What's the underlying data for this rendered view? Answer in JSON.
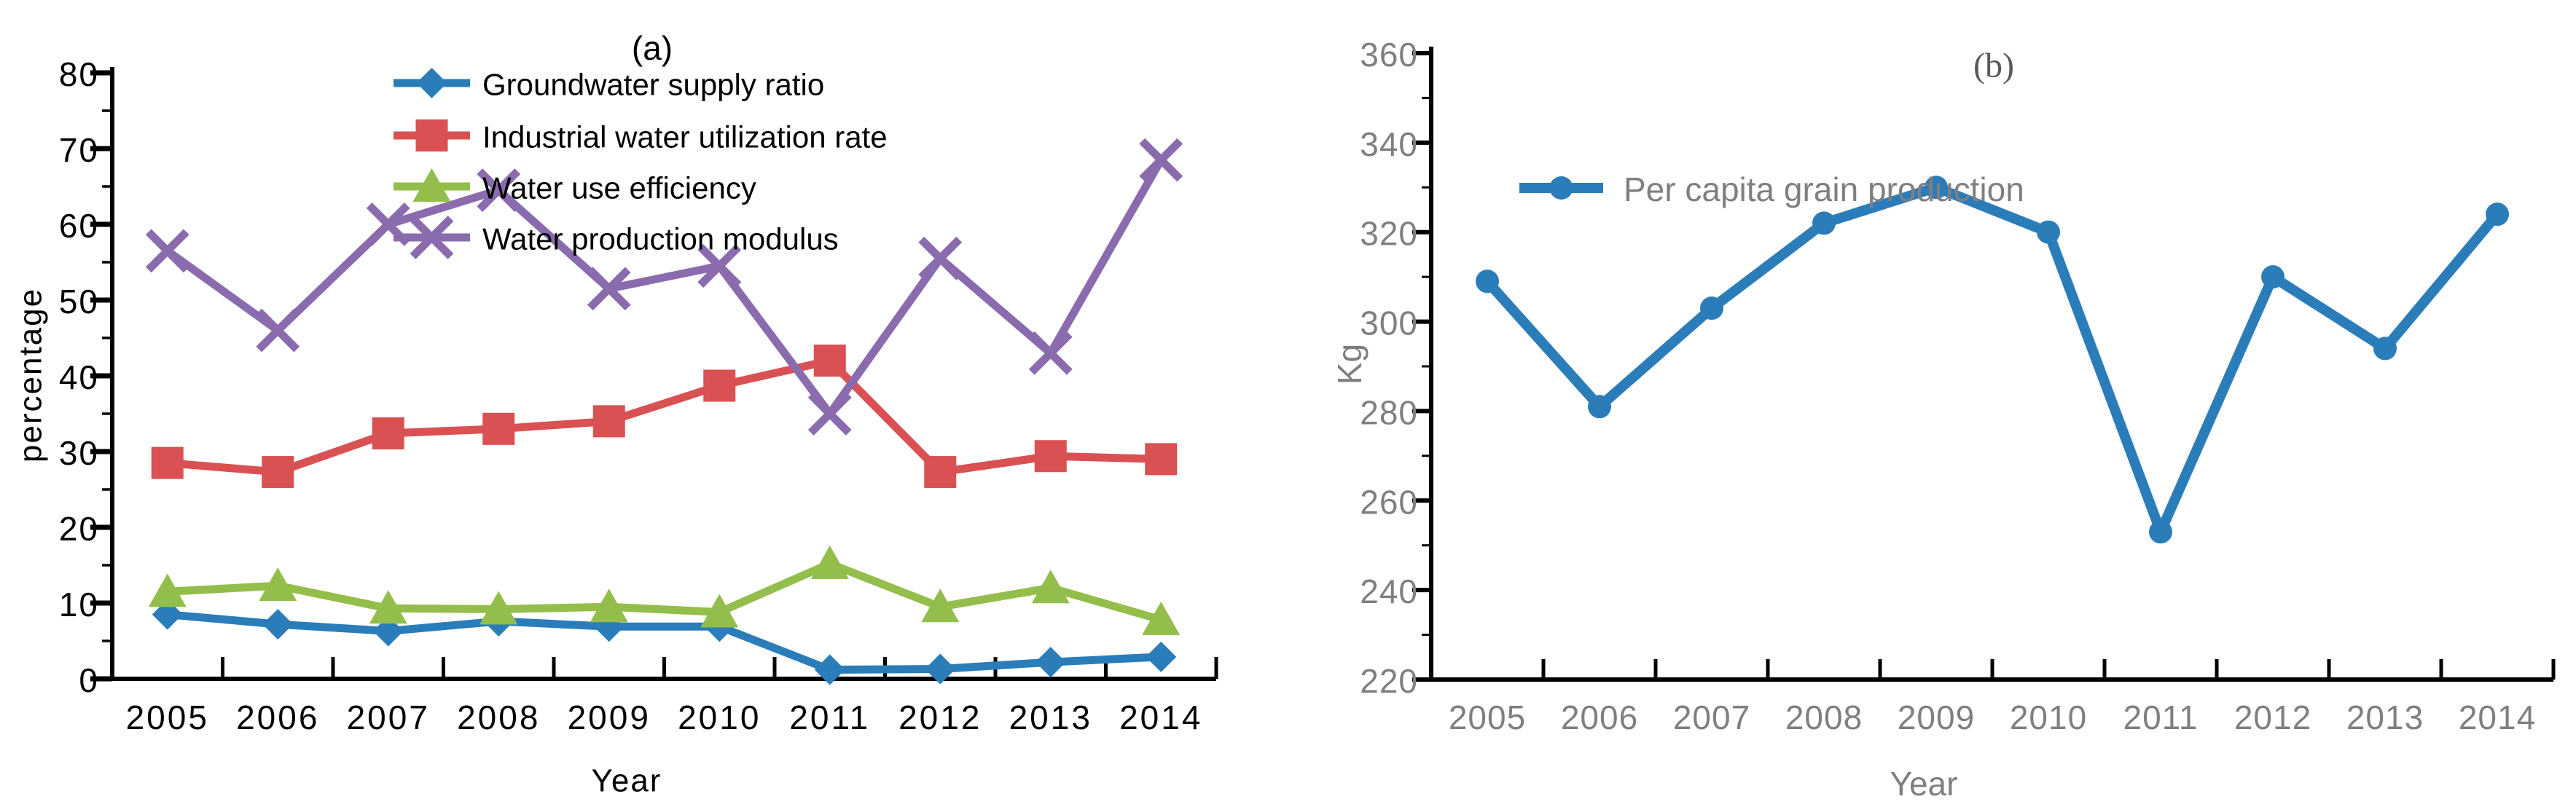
{
  "chart_data": [
    {
      "type": "line",
      "panel": "(a)",
      "title": "(a)",
      "xlabel": "Year",
      "ylabel": "percentage",
      "ylim": [
        0,
        80
      ],
      "y_tick_step": 10,
      "y_minor_step": 5,
      "grid": false,
      "legend_position": "top-inside-left-stacked",
      "text_color": "#000000",
      "categories": [
        "2005",
        "2006",
        "2007",
        "2008",
        "2009",
        "2010",
        "2011",
        "2012",
        "2013",
        "2014"
      ],
      "series": [
        {
          "name": "Groundwater supply ratio",
          "marker": "diamond",
          "color": "#2b7dba",
          "values": [
            8.5,
            7.2,
            6.3,
            7.6,
            6.9,
            6.9,
            1.2,
            1.3,
            2.2,
            2.9
          ]
        },
        {
          "name": "Industrial water utilization rate",
          "marker": "square",
          "color": "#d95152",
          "values": [
            28.5,
            27.3,
            32.4,
            33.0,
            34.0,
            38.7,
            42.0,
            27.3,
            29.4,
            29.0
          ]
        },
        {
          "name": " Water use efficiency",
          "marker": "triangle",
          "color": "#93be4b",
          "values": [
            11.5,
            12.3,
            9.3,
            9.2,
            9.5,
            8.8,
            15.2,
            9.5,
            12.0,
            7.8
          ]
        },
        {
          "name": "Water production modulus",
          "marker": "x",
          "color": "#8a6bae",
          "values": [
            56.5,
            46.0,
            60.0,
            64.5,
            51.5,
            54.5,
            35.0,
            55.5,
            43.0,
            68.5
          ]
        }
      ]
    },
    {
      "type": "line",
      "panel": "(b)",
      "title": "(b)",
      "xlabel": "Year",
      "ylabel": "Kg",
      "ylim": [
        220,
        360
      ],
      "y_tick_step": 20,
      "y_minor_step": 10,
      "grid": false,
      "legend_position": "upper-left-inside",
      "text_color": "#7f7f7f",
      "categories": [
        "2005",
        "2006",
        "2007",
        "2008",
        "2009",
        "2010",
        "2011",
        "2012",
        "2013",
        "2014"
      ],
      "series": [
        {
          "name": "Per capita grain production",
          "marker": "circle",
          "color": "#2b7dba",
          "values": [
            309,
            281,
            303,
            322,
            330,
            320,
            253,
            310,
            294,
            324
          ]
        }
      ]
    }
  ]
}
